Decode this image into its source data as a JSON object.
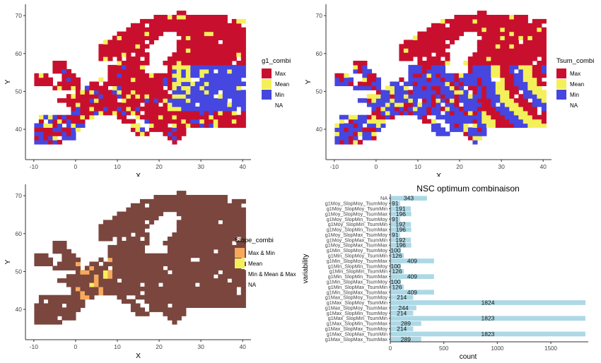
{
  "colors": {
    "max": "#c8102e",
    "mean": "#f4f05a",
    "min": "#4646e0",
    "slope_maxmin": "#f7a95b",
    "slope_mean": "#f4f05a",
    "slope_all": "#7a463e",
    "bar": "#add8e6"
  },
  "chart_data": [
    {
      "type": "heatmap",
      "xlabel": "X",
      "ylabel": "Y",
      "xlim": [
        -12,
        42
      ],
      "ylim": [
        32,
        73
      ],
      "xticks": [
        "-10",
        "0",
        "10",
        "20",
        "30",
        "40"
      ],
      "yticks": [
        "40",
        "50",
        "60",
        "70"
      ],
      "legend": {
        "title": "g1_combi",
        "position": "right",
        "entries": [
          "Max",
          "Mean",
          "Min",
          "NA"
        ]
      }
    },
    {
      "type": "heatmap",
      "xlabel": "X",
      "ylabel": "Y",
      "xlim": [
        -12,
        42
      ],
      "ylim": [
        32,
        73
      ],
      "xticks": [
        "-10",
        "0",
        "10",
        "20",
        "30",
        "40"
      ],
      "yticks": [
        "40",
        "50",
        "60",
        "70"
      ],
      "legend": {
        "title": "Tsum_combi",
        "position": "right",
        "entries": [
          "Max",
          "Mean",
          "Min",
          "NA"
        ]
      }
    },
    {
      "type": "heatmap",
      "xlabel": "X",
      "ylabel": "Y",
      "xlim": [
        -12,
        42
      ],
      "ylim": [
        32,
        73
      ],
      "xticks": [
        "-10",
        "0",
        "10",
        "20",
        "30",
        "40"
      ],
      "yticks": [
        "40",
        "50",
        "60",
        "70"
      ],
      "legend": {
        "title": "Slope_combi",
        "position": "right",
        "entries": [
          "Max & Min",
          "Mean",
          "Min & Mean & Max",
          "NA"
        ]
      }
    },
    {
      "type": "bar",
      "orientation": "horizontal",
      "title": "NSC optimum combinaison",
      "xlabel": "count",
      "ylabel": "variability",
      "xlim": [
        0,
        1850
      ],
      "xticks": [
        "0",
        "500",
        "1000",
        "1500"
      ],
      "categories": [
        "NA",
        "g1Moy_SlopMoy_TsumMoy",
        "g1Moy_SlopMoy_TsumMin",
        "g1Moy_SlopMoy_TsumMax",
        "g1Moy_SlopMin_TsumMoy",
        "g1Moy_SlopMin_TsumMin",
        "g1Moy_SlopMin_TsumMax",
        "g1Moy_SlopMax_TsumMoy",
        "g1Moy_SlopMax_TsumMin",
        "g1Moy_SlopMax_TsumMax",
        "g1Min_SlopMoy_TsumMoy",
        "g1Min_SlopMoy_TsumMin",
        "g1Min_SlopMoy_TsumMax",
        "g1Min_SlopMin_TsumMoy",
        "g1Min_SlopMin_TsumMin",
        "g1Min_SlopMin_TsumMax",
        "g1Min_SlopMax_TsumMoy",
        "g1Min_SlopMax_TsumMin",
        "g1Min_SlopMax_TsumMax",
        "g1Max_SlopMoy_TsumMoy",
        "g1Max_SlopMoy_TsumMin",
        "g1Max_SlopMoy_TsumMax",
        "g1Max_SlopMin_TsumMoy",
        "g1Max_SlopMin_TsumMin",
        "g1Max_SlopMin_TsumMax",
        "g1Max_SlopMax_TsumMoy",
        "g1Max_SlopMax_TsumMin",
        "g1Max_SlopMax_TsumMax"
      ],
      "values": [
        343,
        91,
        191,
        196,
        91,
        192,
        196,
        91,
        192,
        196,
        100,
        126,
        409,
        100,
        126,
        409,
        100,
        126,
        409,
        214,
        1824,
        244,
        214,
        1823,
        289,
        214,
        1823,
        289
      ]
    }
  ]
}
